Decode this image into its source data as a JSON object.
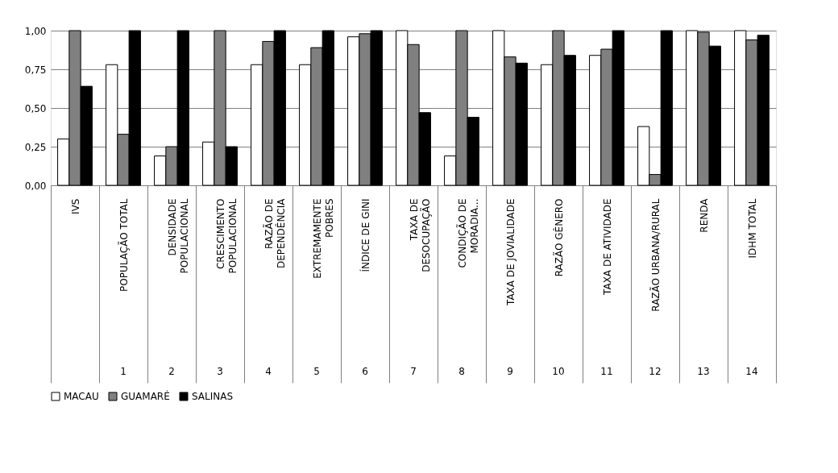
{
  "chart_data": {
    "type": "bar",
    "categories": [
      "IVS",
      "POPULAÇÃO TOTAL",
      "DENSIDADE\nPOPULACIONAL",
      "CRESCIMENTO\nPOPULACIONAL",
      "RAZÃO DE\nDEPENDÊNCIA",
      "EXTREMAMENTE\nPOBRES",
      "ÍNDICE DE GINI",
      "TAXA DE\nDESOCUPAÇÃO",
      "CONDIÇÃO DE\nMORADIA...",
      "TAXA DE JOVIALIDADE",
      "RAZÃO GÊNERO",
      "TAXA DE ATIVIDADE",
      "RAZÃO URBANA/RURAL",
      "RENDA",
      "IDHM TOTAL"
    ],
    "series": [
      {
        "name": "MACAU",
        "color": "#ffffff",
        "values": [
          0.3,
          0.78,
          0.19,
          0.28,
          0.78,
          0.78,
          0.96,
          1.0,
          0.19,
          1.0,
          0.78,
          0.84,
          0.38,
          1.0,
          1.0
        ]
      },
      {
        "name": "GUAMARÉ",
        "color": "#808080",
        "values": [
          1.0,
          0.33,
          0.25,
          1.0,
          0.93,
          0.89,
          0.98,
          0.91,
          1.0,
          0.83,
          1.0,
          0.88,
          0.07,
          0.99,
          0.94
        ]
      },
      {
        "name": "SALINAS",
        "color": "#000000",
        "values": [
          0.64,
          1.0,
          1.0,
          0.25,
          1.0,
          1.0,
          1.0,
          0.47,
          0.44,
          0.79,
          0.84,
          1.0,
          1.0,
          0.9,
          0.97
        ]
      }
    ],
    "annotations": [
      "1",
      "2",
      "3",
      "4",
      "5",
      "6",
      "7",
      "8",
      "9",
      "10",
      "11",
      "12",
      "13",
      "14"
    ],
    "ylim": [
      0,
      1.0
    ],
    "yticks": [
      {
        "value": 0,
        "label": "0,00"
      },
      {
        "value": 0.25,
        "label": "0,25"
      },
      {
        "value": 0.5,
        "label": "0,50"
      },
      {
        "value": 0.75,
        "label": "0,75"
      },
      {
        "value": 1.0,
        "label": "1,00"
      }
    ],
    "grid": "y",
    "legend": "bottom"
  }
}
